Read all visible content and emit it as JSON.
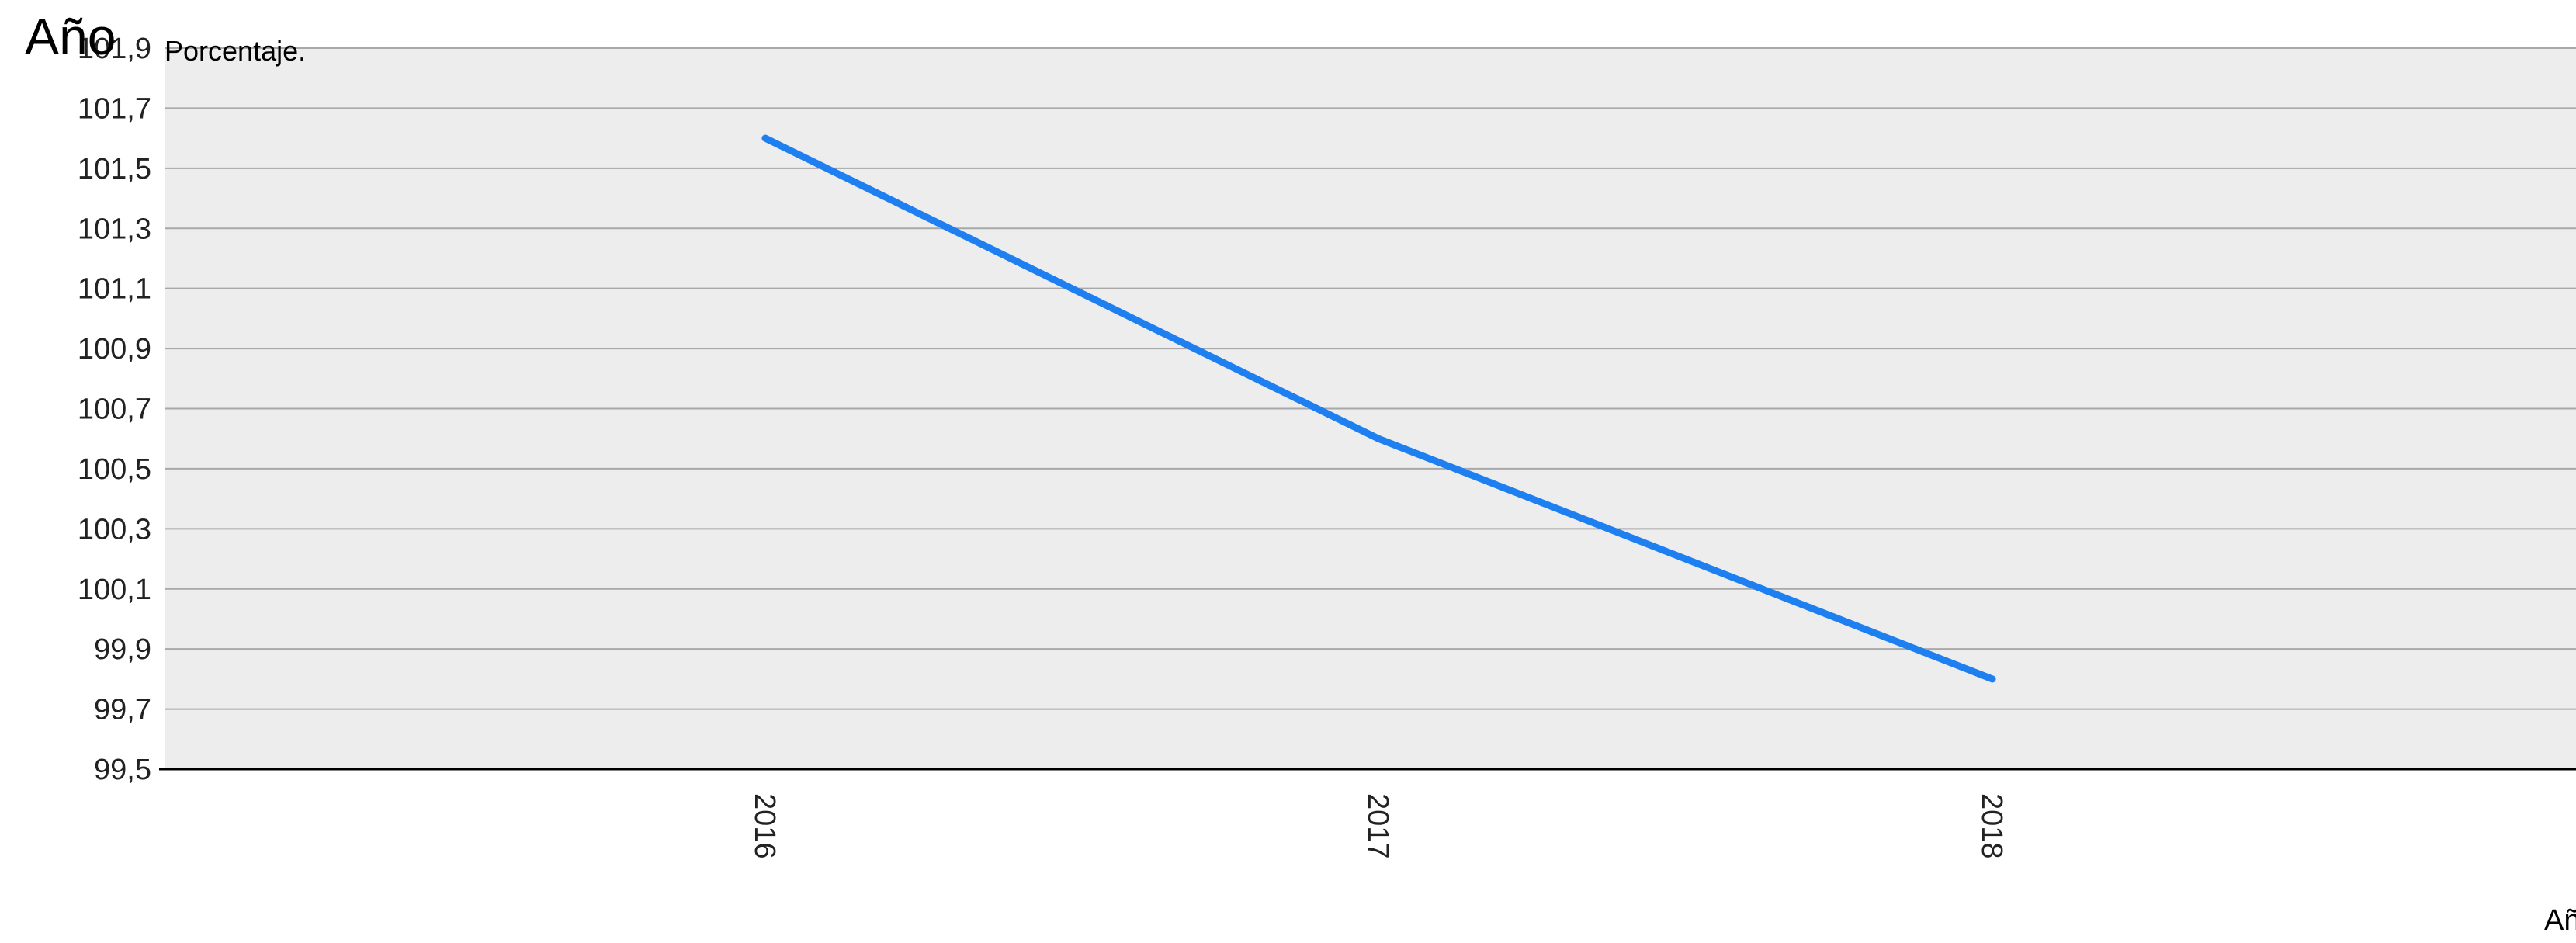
{
  "chart_data": {
    "type": "line",
    "title": "Año",
    "ylabel": "Porcentaje.",
    "xlabel": "Añ",
    "categories": [
      "2016",
      "2017",
      "2018"
    ],
    "series": [
      {
        "values": [
          101.6,
          100.6,
          99.8
        ]
      }
    ],
    "ylim": [
      99.5,
      101.9
    ],
    "yticks": [
      "101,9",
      "101,7",
      "101,5",
      "101,3",
      "101,1",
      "100,9",
      "100,7",
      "100,5",
      "100,3",
      "100,1",
      "99,9",
      "99,7",
      "99,5"
    ],
    "grid": true,
    "legend": "none",
    "colors": {
      "line": "#1e7ff0",
      "plot_background": "#ededed",
      "grid": "#a8a8a8",
      "axis": "#000000"
    }
  }
}
